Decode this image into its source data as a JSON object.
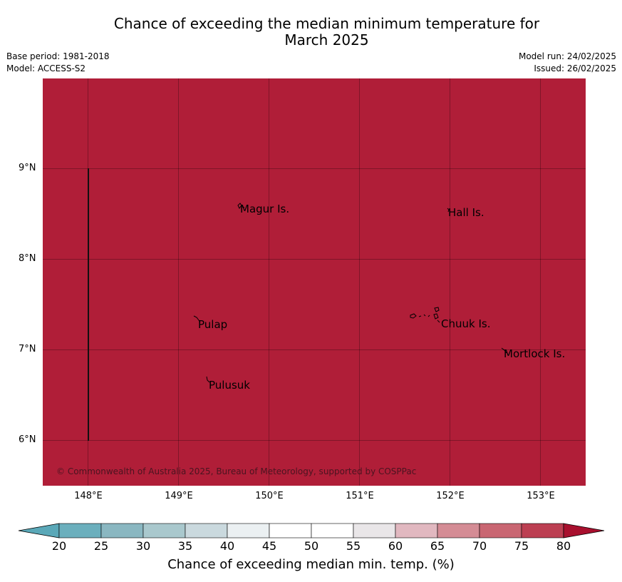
{
  "title_line1": "Chance of exceeding the median minimum temperature for",
  "title_line2": "March 2025",
  "meta": {
    "base_period": "Base period: 1981-2018",
    "model": "Model: ACCESS-S2",
    "model_run": "Model run: 24/02/2025",
    "issued": "Issued: 26/02/2025"
  },
  "map": {
    "fill_color": "#b01e38",
    "lat_labels": [
      "9°N",
      "8°N",
      "7°N",
      "6°N"
    ],
    "lon_labels": [
      "148°E",
      "149°E",
      "150°E",
      "151°E",
      "152°E",
      "153°E"
    ],
    "places": [
      {
        "name": "Magur Is."
      },
      {
        "name": "Hall Is."
      },
      {
        "name": "Pulap"
      },
      {
        "name": "Chuuk Is."
      },
      {
        "name": "Mortlock Is."
      },
      {
        "name": "Pulusuk"
      }
    ],
    "copyright": "© Commonwealth of Australia 2025, Bureau of Meteorology, supported by COSPPac"
  },
  "colorbar": {
    "ticks": [
      "20",
      "25",
      "30",
      "35",
      "40",
      "45",
      "50",
      "55",
      "60",
      "65",
      "70",
      "75",
      "80"
    ],
    "colors": [
      "#5aa8b8",
      "#6bafbd",
      "#8ab7c1",
      "#a9c8cd",
      "#cad9de",
      "#ebf0f2",
      "#ffffff",
      "#ffffff",
      "#e9e6e8",
      "#e1b8c0",
      "#d48c95",
      "#c96672",
      "#bc3f52",
      "#a8102e"
    ],
    "label": "Chance of exceeding median min. temp. (%)"
  }
}
